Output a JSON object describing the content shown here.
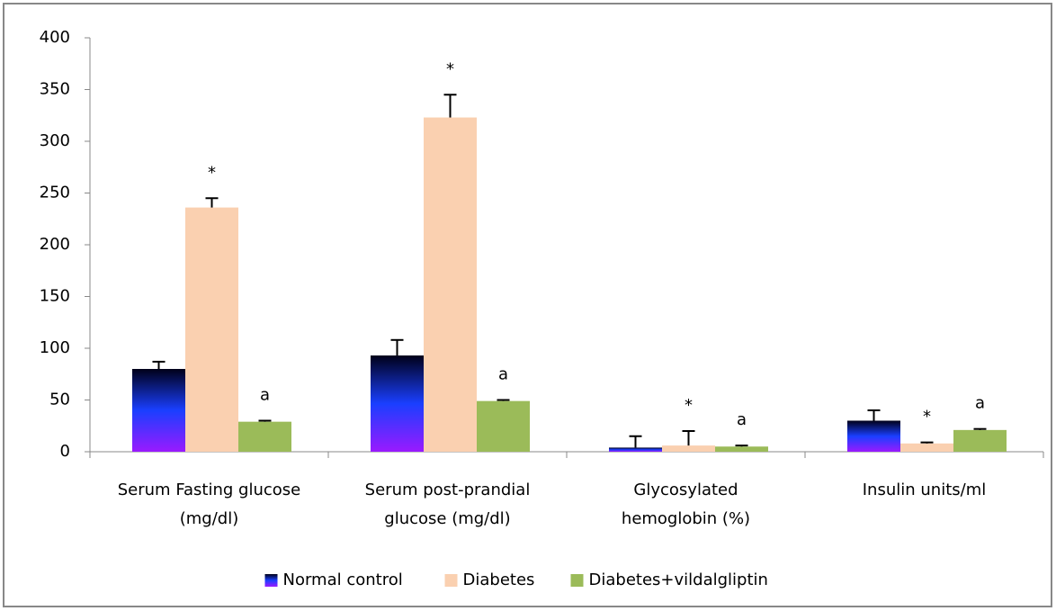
{
  "chart_data": {
    "type": "bar",
    "categories": [
      [
        "Serum Fasting glucose",
        "(mg/dl)"
      ],
      [
        "Serum post-prandial",
        "glucose (mg/dl)"
      ],
      [
        "Glycosylated",
        "hemoglobin (%)"
      ],
      [
        "Insulin units/ml"
      ]
    ],
    "series": [
      {
        "name": "Normal control",
        "color": "#1a3fff",
        "gradient": [
          "#000018",
          "#1a3fff",
          "#9a1aff"
        ],
        "values": [
          80,
          93,
          4,
          30
        ],
        "errors": [
          7,
          15,
          11,
          10
        ]
      },
      {
        "name": "Diabetes",
        "color": "#fad0b0",
        "values": [
          236,
          323,
          6,
          8
        ],
        "errors": [
          9,
          22,
          14,
          1
        ],
        "annotations": [
          "*",
          "*",
          "*",
          "*"
        ]
      },
      {
        "name": "Diabetes+vildalgliptin",
        "color": "#9bbb59",
        "values": [
          29,
          49,
          5,
          21
        ],
        "errors": [
          1,
          1,
          1,
          1
        ],
        "annotations": [
          "a",
          "a",
          "a",
          "a"
        ]
      }
    ],
    "ylim": [
      0,
      400
    ],
    "yticks": [
      0,
      50,
      100,
      150,
      200,
      250,
      300,
      350,
      400
    ],
    "grid": false,
    "legend": "bottom"
  }
}
